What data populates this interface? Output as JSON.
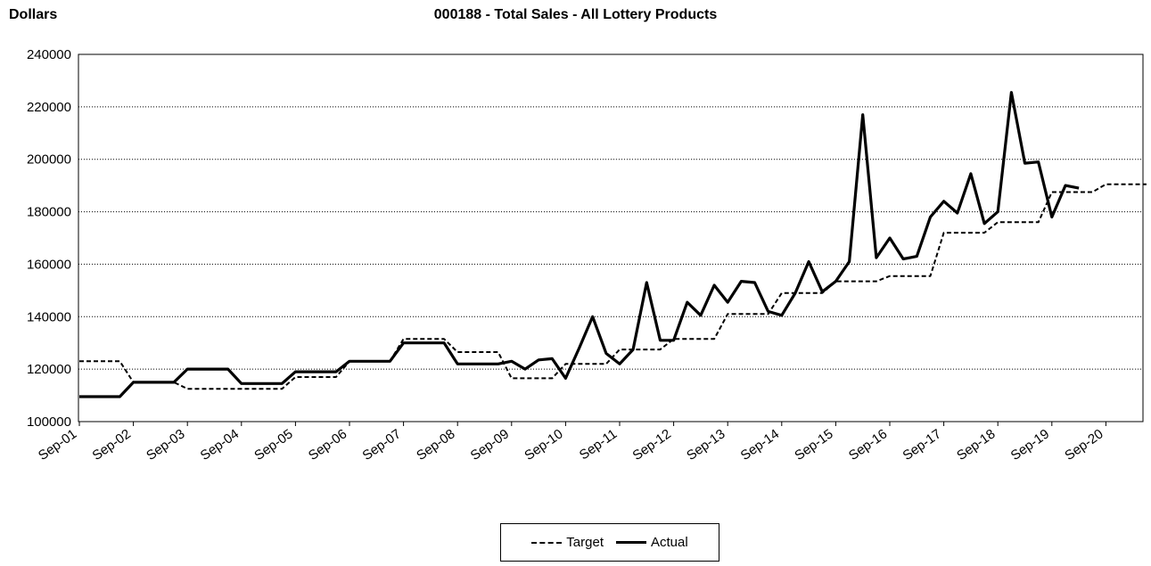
{
  "chart_data": {
    "type": "line",
    "title": "000188 - Total Sales - All Lottery Products",
    "ylabel": "Dollars",
    "xlabel": "",
    "ylim": [
      100000,
      240000
    ],
    "yticks": [
      "100000",
      "120000",
      "140000",
      "160000",
      "180000",
      "200000",
      "220000",
      "240000"
    ],
    "xtick_labels": [
      "Sep-01",
      "Sep-02",
      "Sep-03",
      "Sep-04",
      "Sep-05",
      "Sep-06",
      "Sep-07",
      "Sep-08",
      "Sep-09",
      "Sep-10",
      "Sep-11",
      "Sep-12",
      "Sep-13",
      "Sep-14",
      "Sep-15",
      "Sep-16",
      "Sep-17",
      "Sep-18",
      "Sep-19",
      "Sep-20"
    ],
    "grid": "horizontal dotted",
    "legend_position": "bottom-center",
    "series": [
      {
        "name": "Target",
        "style": "dashed",
        "points": [
          [
            0,
            123000
          ],
          [
            0.75,
            123000
          ],
          [
            1.0,
            115000
          ],
          [
            1.75,
            115000
          ],
          [
            2.0,
            112500
          ],
          [
            3.75,
            112500
          ],
          [
            4.0,
            117000
          ],
          [
            4.75,
            117000
          ],
          [
            5.0,
            123000
          ],
          [
            5.75,
            123000
          ],
          [
            6.0,
            131500
          ],
          [
            6.75,
            131500
          ],
          [
            7.0,
            126500
          ],
          [
            7.75,
            126500
          ],
          [
            8.0,
            116500
          ],
          [
            8.75,
            116500
          ],
          [
            9.0,
            122000
          ],
          [
            9.75,
            122000
          ],
          [
            10.0,
            127500
          ],
          [
            10.75,
            127500
          ],
          [
            11.0,
            131500
          ],
          [
            11.75,
            131500
          ],
          [
            12.0,
            141000
          ],
          [
            12.75,
            141000
          ],
          [
            13.0,
            149000
          ],
          [
            13.75,
            149000
          ],
          [
            14.0,
            153500
          ],
          [
            14.75,
            153500
          ],
          [
            15.0,
            155500
          ],
          [
            15.75,
            155500
          ],
          [
            16.0,
            172000
          ],
          [
            16.75,
            172000
          ],
          [
            17.0,
            176000
          ],
          [
            17.75,
            176000
          ],
          [
            18.0,
            187500
          ],
          [
            18.75,
            187500
          ],
          [
            19.0,
            190500
          ],
          [
            19.75,
            190500
          ]
        ]
      },
      {
        "name": "Actual",
        "style": "solid",
        "points": [
          [
            0,
            109500
          ],
          [
            0.75,
            109500
          ],
          [
            1.0,
            115000
          ],
          [
            1.75,
            115000
          ],
          [
            2.0,
            120000
          ],
          [
            2.75,
            120000
          ],
          [
            3.0,
            114500
          ],
          [
            3.75,
            114500
          ],
          [
            4.0,
            119000
          ],
          [
            4.75,
            119000
          ],
          [
            5.0,
            123000
          ],
          [
            5.75,
            123000
          ],
          [
            6.0,
            130000
          ],
          [
            6.75,
            130000
          ],
          [
            7.0,
            122000
          ],
          [
            7.75,
            122000
          ],
          [
            8.0,
            123000
          ],
          [
            8.25,
            120000
          ],
          [
            8.5,
            123500
          ],
          [
            8.75,
            124000
          ],
          [
            9.0,
            116500
          ],
          [
            9.25,
            128000
          ],
          [
            9.5,
            140000
          ],
          [
            9.75,
            126000
          ],
          [
            10.0,
            122000
          ],
          [
            10.25,
            127500
          ],
          [
            10.5,
            153000
          ],
          [
            10.75,
            131000
          ],
          [
            11.0,
            131000
          ],
          [
            11.25,
            145500
          ],
          [
            11.5,
            140500
          ],
          [
            11.75,
            152000
          ],
          [
            12.0,
            145500
          ],
          [
            12.25,
            153500
          ],
          [
            12.5,
            153000
          ],
          [
            12.75,
            142000
          ],
          [
            13.0,
            140500
          ],
          [
            13.25,
            149000
          ],
          [
            13.5,
            161000
          ],
          [
            13.75,
            149500
          ],
          [
            14.0,
            153500
          ],
          [
            14.25,
            161000
          ],
          [
            14.5,
            217000
          ],
          [
            14.75,
            162500
          ],
          [
            15.0,
            170000
          ],
          [
            15.25,
            162000
          ],
          [
            15.5,
            163000
          ],
          [
            15.75,
            178000
          ],
          [
            16.0,
            184000
          ],
          [
            16.25,
            179500
          ],
          [
            16.5,
            194500
          ],
          [
            16.75,
            175500
          ],
          [
            17.0,
            180000
          ],
          [
            17.25,
            225500
          ],
          [
            17.5,
            198500
          ],
          [
            17.75,
            199000
          ],
          [
            18.0,
            178000
          ],
          [
            18.25,
            190000
          ],
          [
            18.5,
            189000
          ]
        ]
      }
    ]
  },
  "legend": {
    "target_label": "Target",
    "actual_label": "Actual"
  }
}
